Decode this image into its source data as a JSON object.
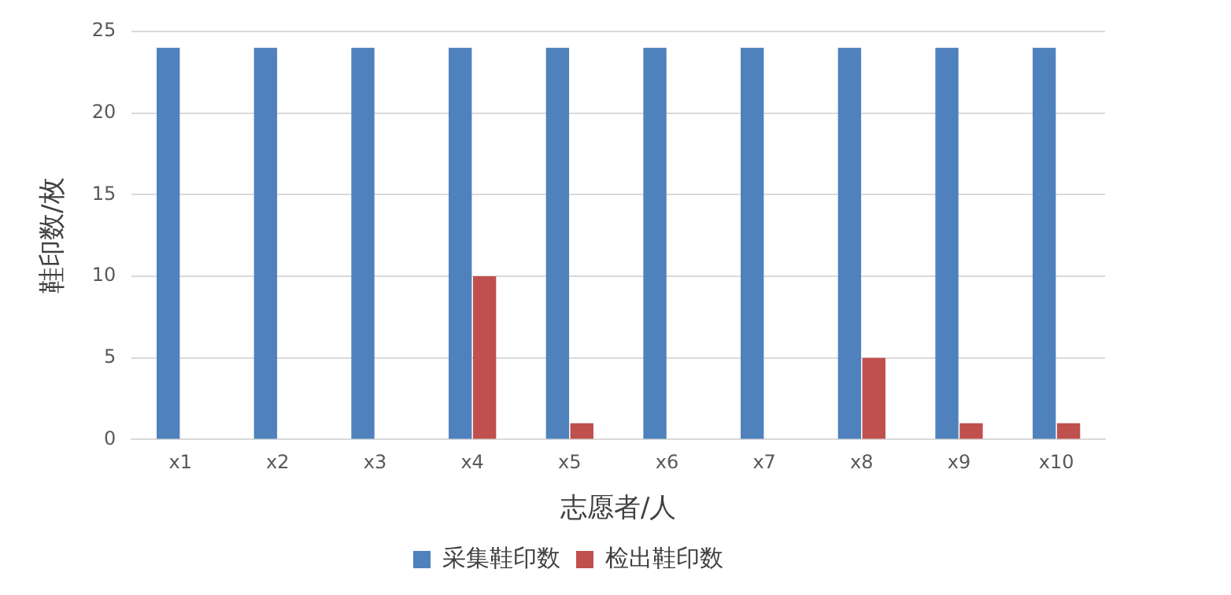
{
  "chart_data": {
    "type": "bar",
    "xlabel": "志愿者/人",
    "ylabel": "鞋印数/枚",
    "categories": [
      "x1",
      "x2",
      "x3",
      "x4",
      "x5",
      "x6",
      "x7",
      "x8",
      "x9",
      "x10"
    ],
    "series": [
      {
        "name": "采集鞋印数",
        "color": "#4f81bd",
        "values": [
          24,
          24,
          24,
          24,
          24,
          24,
          24,
          24,
          24,
          24
        ]
      },
      {
        "name": "检出鞋印数",
        "color": "#c0504d",
        "values": [
          0,
          0,
          0,
          10,
          1,
          0,
          0,
          5,
          1,
          1
        ]
      }
    ],
    "ylim": [
      0,
      25
    ],
    "yticks": [
      0,
      5,
      10,
      15,
      20,
      25
    ],
    "grid": "y",
    "legend": "bottom"
  }
}
